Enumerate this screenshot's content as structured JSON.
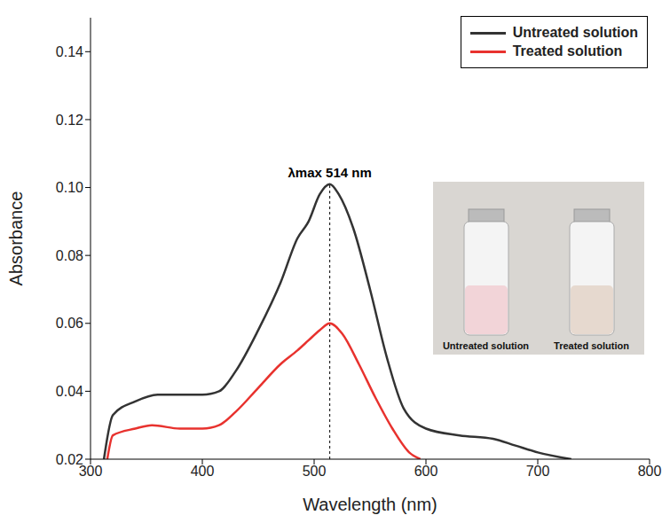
{
  "chart_data": {
    "type": "line",
    "x_label": "Wavelength (nm)",
    "y_label": "Absorbance",
    "xlim": [
      300,
      800
    ],
    "xticks": [
      300,
      400,
      500,
      600,
      700,
      800
    ],
    "ylim": [
      0.02,
      0.15
    ],
    "yticks": [
      0.02,
      0.04,
      0.06,
      0.08,
      {
        "value": 0.1,
        "label": "0.10"
      },
      0.12,
      0.14
    ],
    "grid": false,
    "legend": "upper right",
    "series": [
      {
        "name": "Untreated solution",
        "color": "#333333",
        "x": [
          312,
          320,
          340,
          360,
          380,
          400,
          415,
          430,
          450,
          470,
          485,
          495,
          505,
          514,
          522,
          535,
          550,
          565,
          580,
          600,
          630,
          660,
          680,
          700,
          730
        ],
        "values": [
          0.02,
          0.033,
          0.037,
          0.039,
          0.039,
          0.039,
          0.04,
          0.046,
          0.058,
          0.072,
          0.085,
          0.09,
          0.098,
          0.101,
          0.098,
          0.088,
          0.07,
          0.05,
          0.035,
          0.029,
          0.027,
          0.026,
          0.024,
          0.022,
          0.02
        ]
      },
      {
        "name": "Treated solution",
        "color": "#e8322e",
        "x": [
          315,
          320,
          340,
          355,
          380,
          400,
          415,
          430,
          450,
          470,
          485,
          495,
          505,
          514,
          525,
          540,
          555,
          570,
          585,
          595
        ],
        "values": [
          0.02,
          0.027,
          0.029,
          0.03,
          0.029,
          0.029,
          0.03,
          0.034,
          0.041,
          0.048,
          0.052,
          0.055,
          0.058,
          0.06,
          0.057,
          0.048,
          0.038,
          0.029,
          0.022,
          0.02
        ]
      }
    ],
    "annotations": [
      {
        "text": "λmax 514 nm",
        "x": 514
      }
    ],
    "inset": {
      "captions": [
        "Untreated solution",
        "Treated solution"
      ]
    }
  }
}
